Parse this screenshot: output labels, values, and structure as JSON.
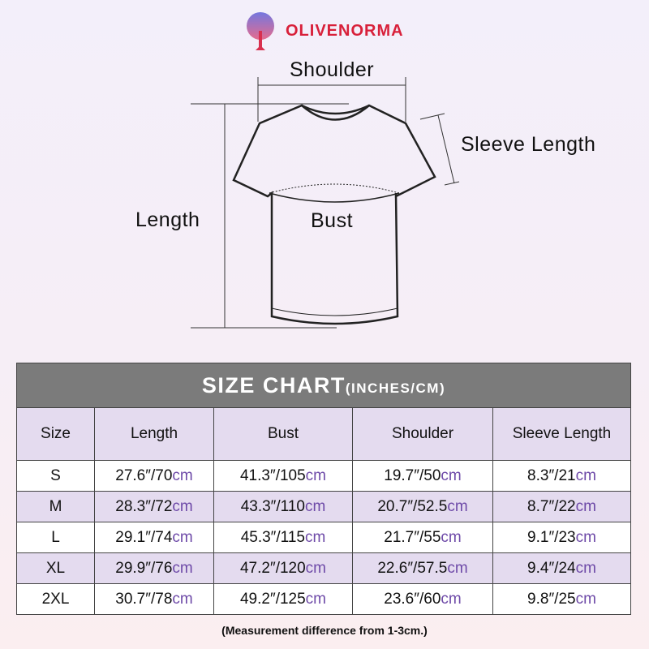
{
  "brand": {
    "name": "OLIVENORMA"
  },
  "diagram": {
    "shoulder": "Shoulder",
    "sleeve_length": "Sleeve Length",
    "length": "Length",
    "bust": "Bust"
  },
  "table": {
    "title": "SIZE CHART",
    "title_unit": "(INCHES/CM)",
    "headers": [
      "Size",
      "Length",
      "Bust",
      "Shoulder",
      "Sleeve Length"
    ],
    "unit_suffix": "cm",
    "rows": [
      {
        "size": "S",
        "length": "27.6″/70",
        "bust": "41.3″/105",
        "shoulder": "19.7″/50",
        "sleeve": "8.3″/21"
      },
      {
        "size": "M",
        "length": "28.3″/72",
        "bust": "43.3″/110",
        "shoulder": "20.7″/52.5",
        "sleeve": "8.7″/22"
      },
      {
        "size": "L",
        "length": "29.1″/74",
        "bust": "45.3″/115",
        "shoulder": "21.7″/55",
        "sleeve": "9.1″/23"
      },
      {
        "size": "XL",
        "length": "29.9″/76",
        "bust": "47.2″/120",
        "shoulder": "22.6″/57.5",
        "sleeve": "9.4″/24"
      },
      {
        "size": "2XL",
        "length": "30.7″/78",
        "bust": "49.2″/125",
        "shoulder": "23.6″/60",
        "sleeve": "9.8″/25"
      }
    ]
  },
  "note": "(Measurement difference from 1-3cm.)",
  "colors": {
    "brand": "#d8203a",
    "header": "#7b7b7b",
    "row_alt": "#e4dbef",
    "cm": "#6e4aa8"
  }
}
